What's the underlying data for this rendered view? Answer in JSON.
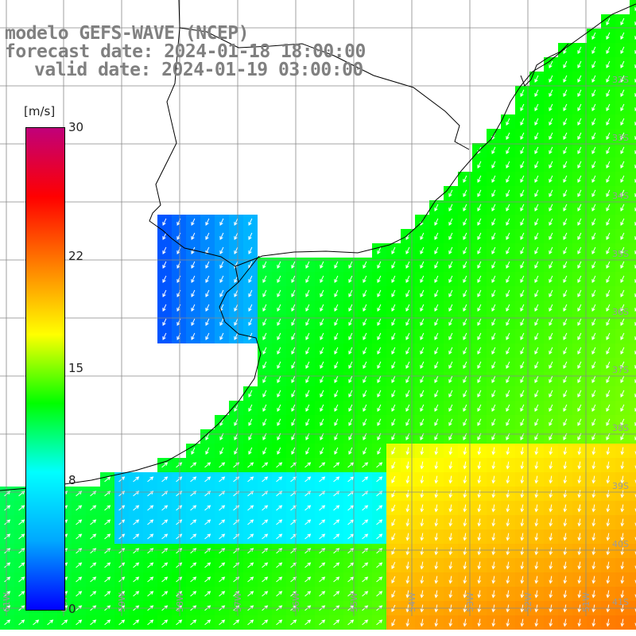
{
  "titles": {
    "model": "modelo GEFS-WAVE (NCEP)",
    "forecast": "forecast date: 2024-01-18 18:00:00",
    "valid": "valid date: 2024-01-19 03:00:00"
  },
  "colorbar": {
    "units": "[m/s]",
    "labels": [
      "30",
      "22",
      "15",
      "8",
      "0"
    ],
    "values": [
      30,
      22,
      15,
      8,
      0
    ],
    "range": [
      0,
      30
    ],
    "colors": [
      "#0000ff",
      "#00a8ff",
      "#00ffff",
      "#00ff00",
      "#ffff00",
      "#ff8000",
      "#ff0000",
      "#c0007a"
    ]
  },
  "map": {
    "graticule_lat_labels": [
      "32S",
      "33S",
      "34S",
      "35S",
      "36S",
      "37S",
      "38S",
      "39S",
      "40S",
      "41S"
    ],
    "graticule_lon_labels": [
      "61W",
      "60W",
      "59W",
      "58W",
      "57W",
      "56W",
      "55W",
      "54W",
      "53W",
      "52W",
      "51W"
    ],
    "land_color": "#ffffff",
    "grid_color": "#888888",
    "arrow_color": "#ffffff"
  }
}
